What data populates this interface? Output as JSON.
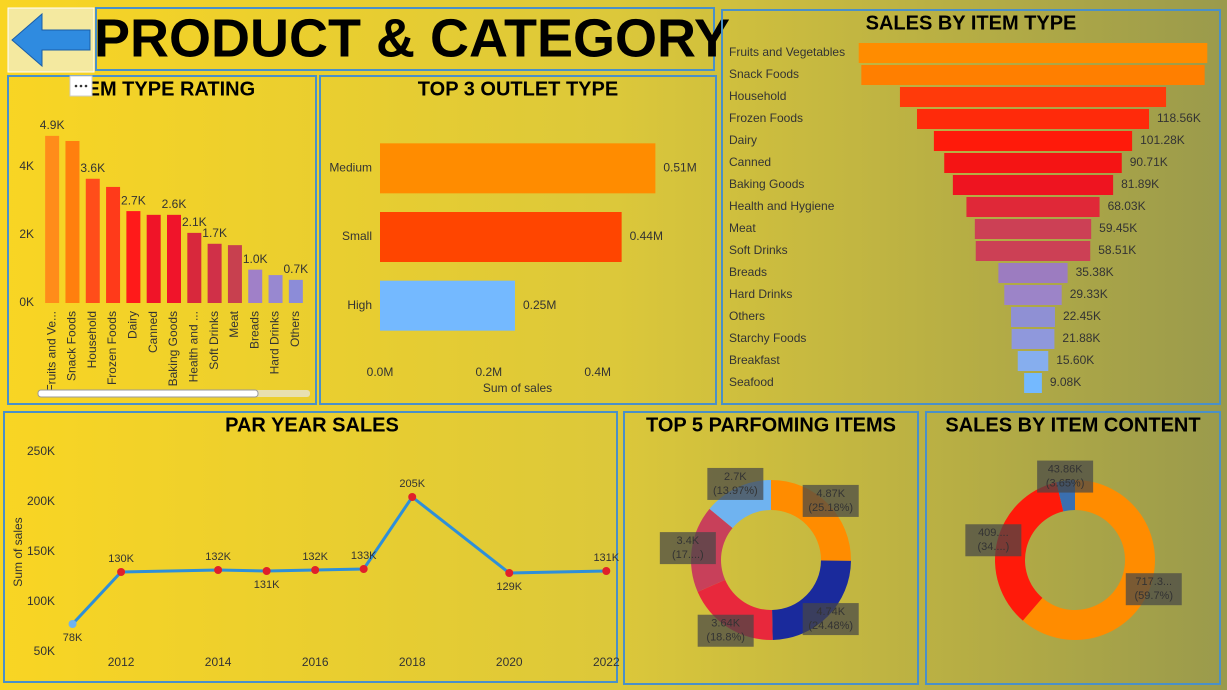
{
  "header": {
    "title": "PRODUCT & CATEGORY"
  },
  "chart_data": [
    {
      "type": "bar",
      "title": "ITEM TYPE RATING",
      "categories": [
        "Fruits and Ve...",
        "Snack Foods",
        "Household",
        "Frozen Foods",
        "Dairy",
        "Canned",
        "Baking Goods",
        "Health and ...",
        "Soft Drinks",
        "Meat",
        "Breads",
        "Hard Drinks",
        "Others"
      ],
      "values": [
        4910,
        4760,
        3650,
        3410,
        2700,
        2590,
        2590,
        2060,
        1740,
        1700,
        980,
        820,
        680
      ],
      "value_labels": [
        "4.9K",
        null,
        "3.6K",
        null,
        "2.7K",
        null,
        "2.6K",
        "2.1K",
        "1.7K",
        null,
        "1.0K",
        null,
        "0.7K"
      ],
      "colors": [
        "#ff8c1a",
        "#ff7f0e",
        "#ff4d1a",
        "#ff3a1a",
        "#ff1a1a",
        "#f01428",
        "#f0142a",
        "#d8283c",
        "#d03048",
        "#c8404f",
        "#a080c8",
        "#9888d0",
        "#8c8cd8"
      ],
      "ylim": [
        0,
        5200
      ],
      "yticks": [
        {
          "value": 0,
          "label": "0K"
        },
        {
          "value": 2000,
          "label": "2K"
        },
        {
          "value": 4000,
          "label": "4K"
        }
      ]
    },
    {
      "type": "hbar",
      "title": "TOP 3 OUTLET TYPE",
      "categories": [
        "Medium",
        "Small",
        "High"
      ],
      "values": [
        506000,
        444000,
        248000
      ],
      "value_labels": [
        "0.51M",
        "0.44M",
        "0.25M"
      ],
      "colors": [
        "#ff8c00",
        "#ff4500",
        "#74b9ff"
      ],
      "xlabel": "Sum of sales",
      "xlim": [
        0,
        520000
      ],
      "xticks": [
        {
          "value": 0,
          "label": "0.0M"
        },
        {
          "value": 200000,
          "label": "0.2M"
        },
        {
          "value": 400000,
          "label": "0.4M"
        }
      ]
    },
    {
      "type": "funnel",
      "title": "SALES BY ITEM TYPE",
      "categories": [
        "Fruits and Vegetables",
        "Snack Foods",
        "Household",
        "Frozen Foods",
        "Dairy",
        "Canned",
        "Baking Goods",
        "Health and Hygiene",
        "Meat",
        "Soft Drinks",
        "Breads",
        "Hard Drinks",
        "Others",
        "Starchy Foods",
        "Breakfast",
        "Seafood"
      ],
      "values": [
        178120,
        175430,
        135980,
        118560,
        101280,
        90710,
        81890,
        68030,
        59450,
        58510,
        35380,
        29330,
        22450,
        21880,
        15600,
        9080
      ],
      "value_labels": [
        null,
        null,
        null,
        "118.56K",
        "101.28K",
        "90.71K",
        "81.89K",
        "68.03K",
        "59.45K",
        "58.51K",
        "35.38K",
        "29.33K",
        "22.45K",
        "21.88K",
        "15.60K",
        "9.08K"
      ],
      "colors": [
        "#ff8c00",
        "#ff7f00",
        "#ff3a0a",
        "#ff2a0a",
        "#ff1a0a",
        "#f51414",
        "#ee1420",
        "#e02838",
        "#cc4055",
        "#cc4055",
        "#9c7cc0",
        "#9c84c8",
        "#8f90d4",
        "#8f98dc",
        "#86aeee",
        "#74b9ff"
      ]
    },
    {
      "type": "line",
      "title": "PAR YEAR SALES",
      "ylabel": "Sum of sales",
      "x": [
        2011,
        2012,
        2014,
        2015,
        2016,
        2017,
        2018,
        2020,
        2022
      ],
      "values": [
        78000,
        130000,
        132000,
        131000,
        132000,
        133000,
        205000,
        129000,
        131000
      ],
      "value_labels": [
        "78K",
        "130K",
        "132K",
        "131K",
        "132K",
        "133K",
        "205K",
        "129K",
        "131K"
      ],
      "color": "#2e8fd9",
      "marker_color": "#e0202a",
      "xlim": [
        2010.7,
        2022.2
      ],
      "xticks": [
        2012,
        2014,
        2016,
        2018,
        2020,
        2022
      ],
      "ylim": [
        50000,
        250000
      ],
      "yticks": [
        {
          "value": 50000,
          "label": "50K"
        },
        {
          "value": 100000,
          "label": "100K"
        },
        {
          "value": 150000,
          "label": "150K"
        },
        {
          "value": 200000,
          "label": "200K"
        },
        {
          "value": 250000,
          "label": "250K"
        }
      ]
    },
    {
      "type": "donut",
      "title": "TOP 5 PARFOMING ITEMS",
      "values": [
        4870,
        4740,
        3640,
        3400,
        2700
      ],
      "value_labels": [
        "4.87K",
        "4.74K",
        "3.64K",
        "3.4K",
        "2.7K"
      ],
      "percent_labels": [
        "(25.18%)",
        "(24.48%)",
        "(18.8%)",
        "(17....)",
        "(13.97%)"
      ],
      "colors": [
        "#ff8c00",
        "#1a2a9c",
        "#e8283c",
        "#c8405a",
        "#6fb3f0"
      ]
    },
    {
      "type": "donut",
      "title": "SALES BY ITEM CONTENT",
      "values": [
        717300,
        409000,
        43860
      ],
      "value_labels": [
        "717.3...",
        "409....",
        "43.86K"
      ],
      "percent_labels": [
        "(59.7%)",
        "(34....)",
        "(3.65%)"
      ],
      "colors": [
        "#ff8c00",
        "#ff1a0a",
        "#3a6fb0"
      ]
    }
  ]
}
